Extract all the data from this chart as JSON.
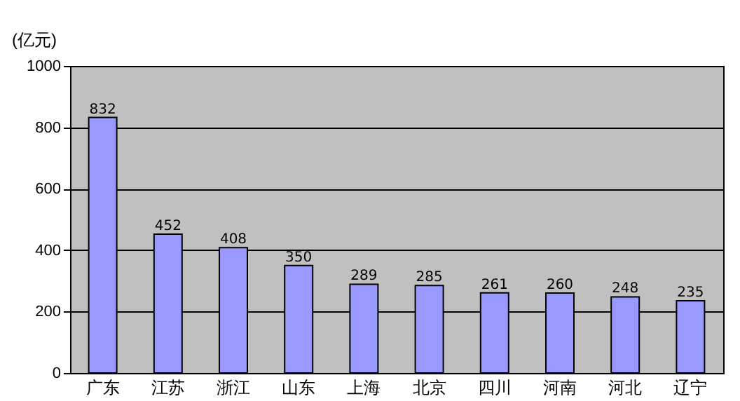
{
  "chart_data": {
    "type": "bar",
    "ylabel": "(亿元)",
    "categories": [
      "广东",
      "江苏",
      "浙江",
      "山东",
      "上海",
      "北京",
      "四川",
      "河南",
      "河北",
      "辽宁"
    ],
    "values": [
      832,
      452,
      408,
      350,
      289,
      285,
      261,
      260,
      248,
      235
    ],
    "color": "#9999ff",
    "ylim": [
      0,
      1000
    ],
    "yticks": [
      0,
      200,
      400,
      600,
      800,
      1000
    ],
    "grid": "y",
    "data_labels": true
  }
}
